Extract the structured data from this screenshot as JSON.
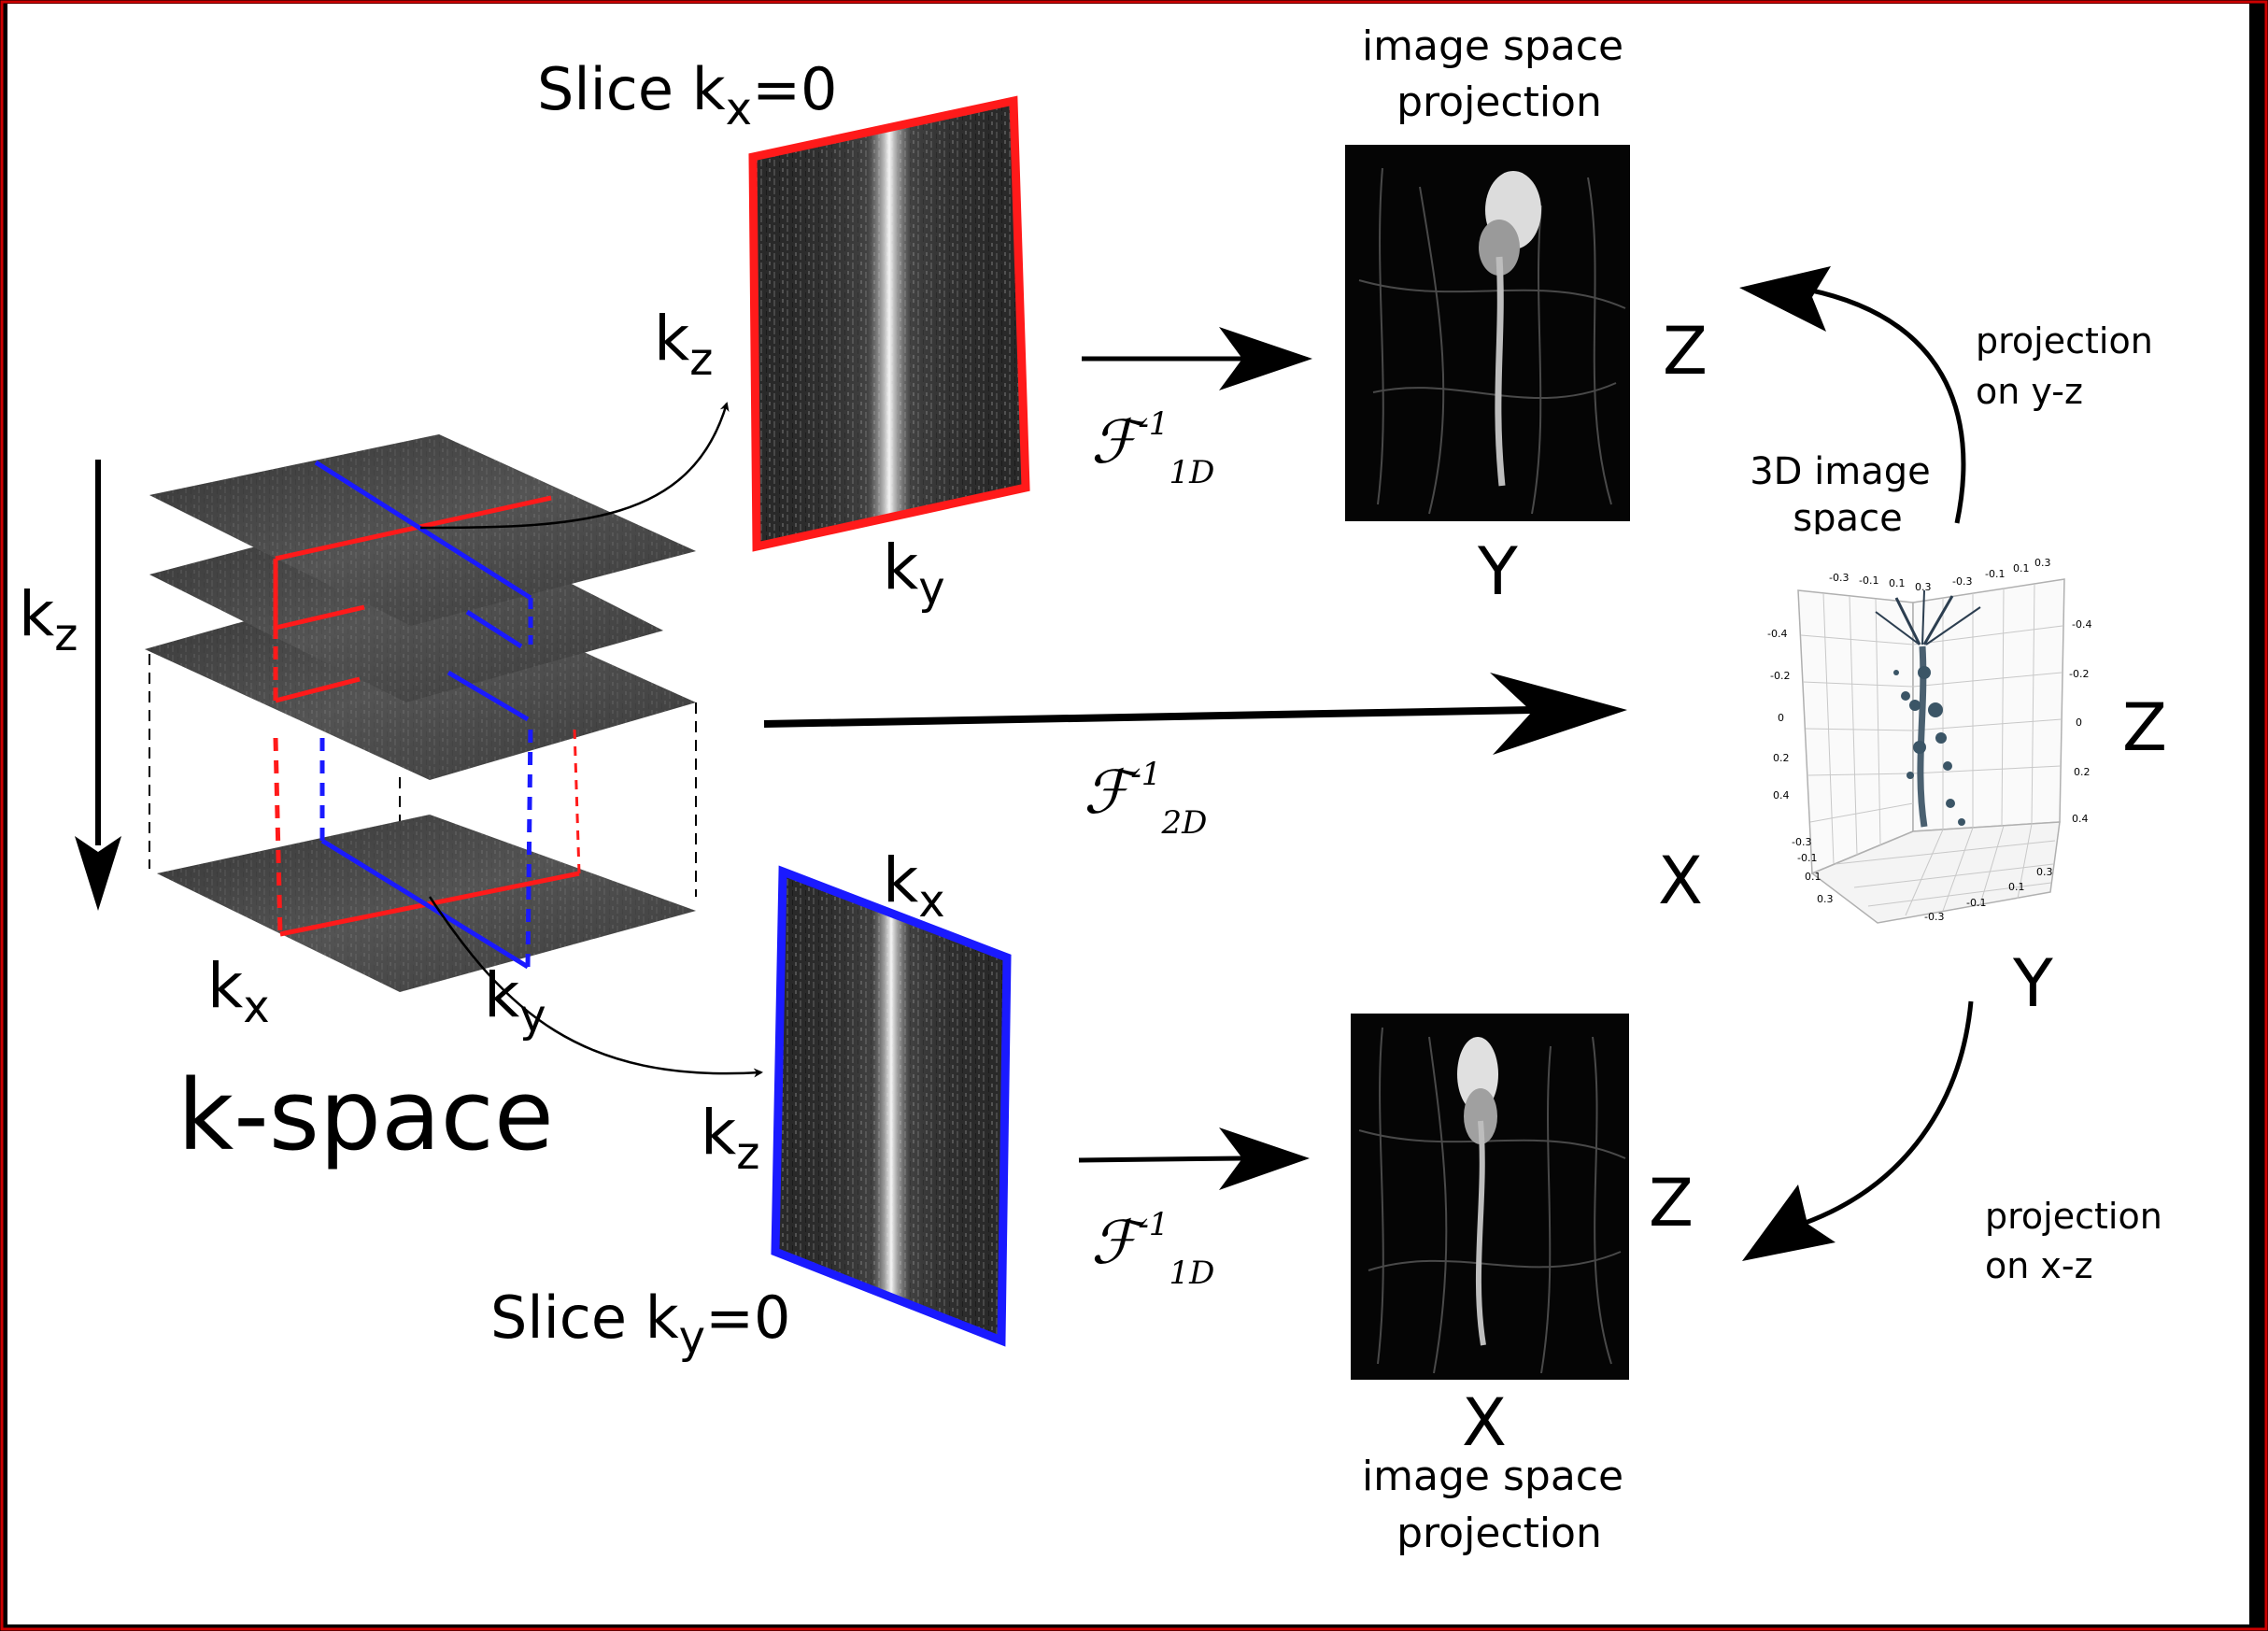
{
  "colors": {
    "frame_border": "#cc0000",
    "slice_x_outline": "#ff1a1a",
    "slice_y_outline": "#1a1aff",
    "background": "#ffffff"
  },
  "kspace": {
    "title": "k-space",
    "axis_kz": {
      "base": "k",
      "sub": "z"
    },
    "axis_kx": {
      "base": "k",
      "sub": "x"
    },
    "axis_ky": {
      "base": "k",
      "sub": "y"
    }
  },
  "slice_x": {
    "title_base": "Slice k",
    "title_sub": "x",
    "title_tail": "=0",
    "vertical_label": {
      "base": "k",
      "sub": "z"
    },
    "horizontal_label": {
      "base": "k",
      "sub": "y"
    }
  },
  "slice_y": {
    "title_base": "Slice k",
    "title_sub": "y",
    "title_tail": "=0",
    "vertical_label": {
      "base": "k",
      "sub": "z"
    },
    "horizontal_label": {
      "base": "k",
      "sub": "x"
    }
  },
  "transforms": {
    "top": {
      "symbol": "ℱ",
      "sup": "-1",
      "sub": "1D"
    },
    "middle": {
      "symbol": "ℱ",
      "sup": "-1",
      "sub": "2D"
    },
    "bottom": {
      "symbol": "ℱ",
      "sup": "-1",
      "sub": "1D"
    }
  },
  "projection_top": {
    "caption_line1": "image space",
    "caption_line2": "projection",
    "vertical_axis": "Z",
    "horizontal_axis": "Y"
  },
  "projection_bottom": {
    "caption_line1": "image space",
    "caption_line2": "projection",
    "vertical_axis": "Z",
    "horizontal_axis": "X"
  },
  "volume": {
    "caption_line1": "3D image",
    "caption_line2": "space",
    "axis_x": "X",
    "axis_y": "Y",
    "axis_z": "Z",
    "top_ticks": [
      "-0.3",
      "-0.1",
      "0.1",
      "0.3",
      "-0.3",
      "-0.1",
      "0.1",
      "0.3"
    ],
    "left_ticks": [
      "-0.4",
      "-0.2",
      "0",
      "0.2",
      "0.4"
    ],
    "right_ticks": [
      "-0.4",
      "-0.2",
      "0",
      "0.2",
      "0.4"
    ],
    "bottom_left_ticks": [
      "-0.3",
      "-0.1",
      "0.1",
      "0.3"
    ],
    "bottom_right_ticks": [
      "-0.3",
      "-0.1",
      "0.1",
      "0.3"
    ]
  },
  "arrow_notes": {
    "yz_line1": "projection",
    "yz_line2": "on y-z",
    "xz_line1": "projection",
    "xz_line2": "on x-z"
  }
}
